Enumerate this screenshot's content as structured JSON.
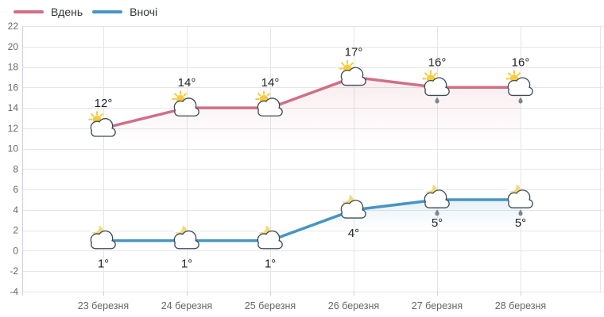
{
  "legend": {
    "items": [
      {
        "label": "Вдень",
        "color": "#d06f85"
      },
      {
        "label": "Вночі",
        "color": "#4795c2"
      }
    ]
  },
  "chart_data": {
    "type": "line",
    "title": "",
    "xlabel": "",
    "ylabel": "",
    "categories": [
      "23 березня",
      "24 березня",
      "25 березня",
      "26 березня",
      "27 березня",
      "28 березня"
    ],
    "yticks": [
      -4,
      -2,
      0,
      2,
      4,
      6,
      8,
      10,
      12,
      14,
      16,
      18,
      20,
      22
    ],
    "ylim": [
      -4,
      22
    ],
    "grid": true,
    "legend_position": "top-left",
    "series": [
      {
        "name": "Вдень",
        "color": "#d06f85",
        "values": [
          12,
          14,
          14,
          17,
          16,
          16
        ],
        "labels": [
          "12°",
          "14°",
          "14°",
          "17°",
          "16°",
          "16°"
        ],
        "icons": [
          "sun-cloud",
          "sun-cloud",
          "sun-cloud",
          "sun-cloud",
          "sun-cloud-rain",
          "sun-cloud-rain"
        ],
        "label_position": "above"
      },
      {
        "name": "Вночі",
        "color": "#4795c2",
        "values": [
          1,
          1,
          1,
          4,
          5,
          5
        ],
        "labels": [
          "1°",
          "1°",
          "1°",
          "4°",
          "5°",
          "5°"
        ],
        "icons": [
          "moon-cloud",
          "moon-cloud",
          "moon-cloud",
          "moon-cloud",
          "moon-cloud-rain",
          "moon-cloud-rain"
        ],
        "label_position": "below"
      }
    ]
  },
  "colors": {
    "grid": "#e6e6e6",
    "axis_line": "#ccd2d9",
    "tick_text": "#666666",
    "temp_label": "#22262b",
    "cloud_stroke": "#3d4a57",
    "cloud_fill": "#ffffff",
    "sun": "#f7cc42",
    "moon": "#f0da80",
    "rain_drop": "#7b8694"
  }
}
